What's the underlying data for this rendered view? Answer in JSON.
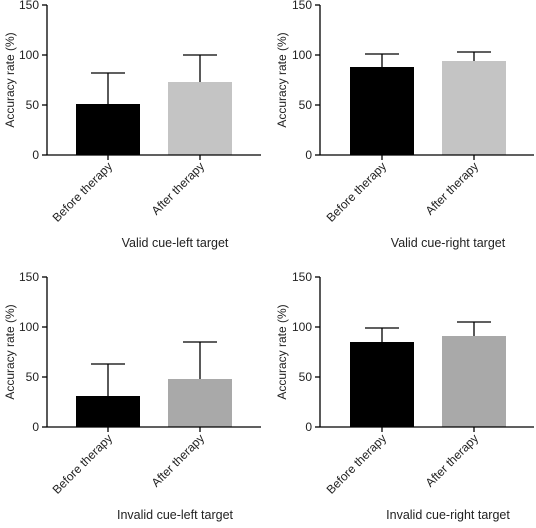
{
  "chart_data": [
    {
      "type": "bar",
      "xlabel": "Valid cue-left target",
      "ylabel": "Accuracy rate (%)",
      "ylim": [
        0,
        150
      ],
      "yticks": [
        "0",
        "50",
        "100",
        "150"
      ],
      "categories": [
        "Before therapy",
        "After therapy"
      ],
      "values": [
        51,
        73
      ],
      "errors": [
        31,
        27
      ],
      "colors": [
        "#000000",
        "#c4c4c4"
      ]
    },
    {
      "type": "bar",
      "xlabel": "Valid cue-right target",
      "ylabel": "Accuracy rate (%)",
      "ylim": [
        0,
        150
      ],
      "yticks": [
        "0",
        "50",
        "100",
        "150"
      ],
      "categories": [
        "Before therapy",
        "After therapy"
      ],
      "values": [
        88,
        94
      ],
      "errors": [
        13,
        9
      ],
      "colors": [
        "#000000",
        "#c4c4c4"
      ]
    },
    {
      "type": "bar",
      "xlabel": "Invalid cue-left target",
      "ylabel": "Accuracy rate (%)",
      "ylim": [
        0,
        150
      ],
      "yticks": [
        "0",
        "50",
        "100",
        "150"
      ],
      "categories": [
        "Before therapy",
        "After therapy"
      ],
      "values": [
        31,
        48
      ],
      "errors": [
        32,
        37
      ],
      "colors": [
        "#000000",
        "#a9a9a9"
      ]
    },
    {
      "type": "bar",
      "xlabel": "Invalid cue-right target",
      "ylabel": "Accuracy rate (%)",
      "ylim": [
        0,
        150
      ],
      "yticks": [
        "0",
        "50",
        "100",
        "150"
      ],
      "categories": [
        "Before therapy",
        "After therapy"
      ],
      "values": [
        85,
        91
      ],
      "errors": [
        14,
        14
      ],
      "colors": [
        "#000000",
        "#a9a9a9"
      ]
    }
  ]
}
